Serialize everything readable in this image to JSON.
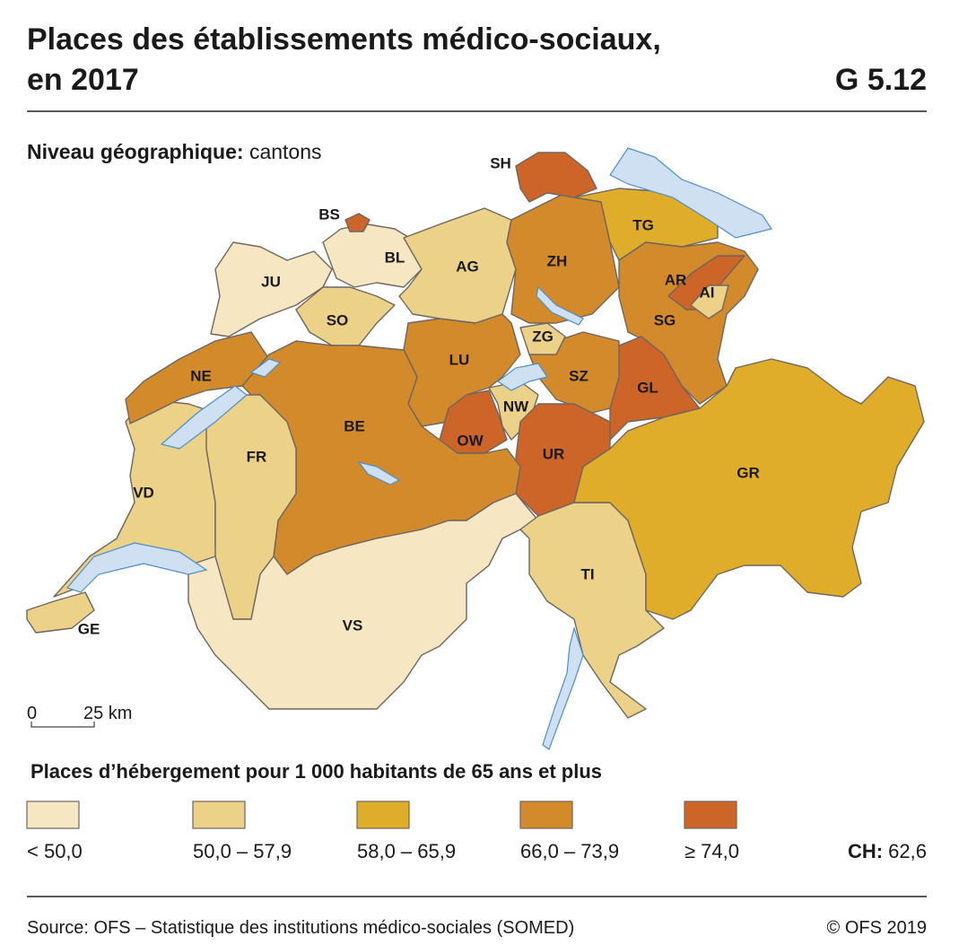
{
  "header": {
    "title_lines": [
      "Places des établissements médico-sociaux,",
      "en 2017"
    ],
    "code": "G 5.12"
  },
  "geo_level": {
    "label": "Niveau géographique:",
    "value": "cantons"
  },
  "map": {
    "cantons": [
      {
        "label": "GE",
        "color": "#ecd189"
      },
      {
        "label": "VD",
        "color": "#ecd189"
      },
      {
        "label": "NE",
        "color": "#d38a2a"
      },
      {
        "label": "JU",
        "color": "#f6e6c2"
      },
      {
        "label": "BL",
        "color": "#f6e6c2"
      },
      {
        "label": "BS",
        "color": "#cd6428"
      },
      {
        "label": "SO",
        "color": "#ecd189"
      },
      {
        "label": "AG",
        "color": "#ecd189"
      },
      {
        "label": "ZH",
        "color": "#d38a2a"
      },
      {
        "label": "SH",
        "color": "#cd6428"
      },
      {
        "label": "TG",
        "color": "#e0ad2a"
      },
      {
        "label": "SG",
        "color": "#d38a2a"
      },
      {
        "label": "AR",
        "color": "#cd6428"
      },
      {
        "label": "AI",
        "color": "#ecd189"
      },
      {
        "label": "GL",
        "color": "#cd6428"
      },
      {
        "label": "SZ",
        "color": "#d38a2a"
      },
      {
        "label": "ZG",
        "color": "#ecd189"
      },
      {
        "label": "LU",
        "color": "#d38a2a"
      },
      {
        "label": "NW",
        "color": "#ecd189"
      },
      {
        "label": "OW",
        "color": "#cd6428"
      },
      {
        "label": "UR",
        "color": "#cd6428"
      },
      {
        "label": "BE",
        "color": "#d38a2a"
      },
      {
        "label": "FR",
        "color": "#ecd189"
      },
      {
        "label": "VS",
        "color": "#f6e6c2"
      },
      {
        "label": "TI",
        "color": "#ecd189"
      },
      {
        "label": "GR",
        "color": "#e0ad2a"
      }
    ]
  },
  "scale": {
    "start": "0",
    "end": "25 km"
  },
  "legend": {
    "title": "Places d’hébergement pour 1 000 habitants de 65 ans et plus",
    "items": [
      {
        "label": "< 50,0",
        "color": "#f6e6c2"
      },
      {
        "label": "50,0 – 57,9",
        "color": "#ecd189"
      },
      {
        "label": "58,0 – 65,9",
        "color": "#e0ad2a"
      },
      {
        "label": "66,0 – 73,9",
        "color": "#d38a2a"
      },
      {
        "label": "≥ 74,0",
        "color": "#cd6428"
      }
    ]
  },
  "national": {
    "label": "CH:",
    "value": "62,6"
  },
  "footer": {
    "source": "Source: OFS – Statistique des institutions médico-sociales (SOMED)",
    "copyright": "© OFS 2019"
  }
}
